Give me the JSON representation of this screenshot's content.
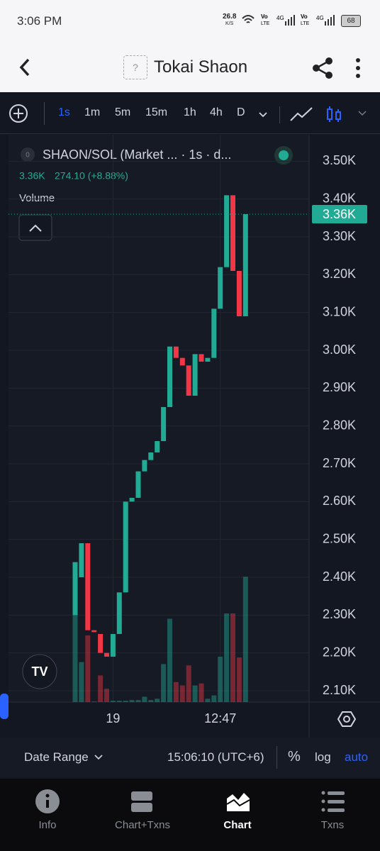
{
  "status_bar": {
    "time": "3:06 PM",
    "speed": "26.8",
    "speed_unit": "K/S",
    "battery": "68"
  },
  "header": {
    "title": "Tokai Shaon",
    "token_icon": "?"
  },
  "toolbar": {
    "intervals": [
      "1s",
      "1m",
      "5m",
      "15m",
      "1h",
      "4h",
      "D"
    ]
  },
  "chart_data": {
    "type": "candlestick",
    "legend_badge": "0",
    "title": "SHAON/SOL (Market ...  ·  1s  ·  d...",
    "ohlc_text": [
      "3.36K",
      "274.10 (+8.88%)"
    ],
    "volume_label": "Volume",
    "categories": [
      null,
      null,
      null,
      null,
      null,
      null,
      "19",
      null,
      null,
      null,
      null,
      null,
      null,
      null,
      null,
      null,
      null,
      null,
      null,
      null,
      null,
      null,
      null,
      "12:47",
      null,
      null,
      null,
      null
    ],
    "series": [
      {
        "name": "open",
        "values": [
          2300,
          2400,
          2490,
          2260,
          2250,
          2200,
          2190,
          2250,
          2360,
          2600,
          2610,
          2680,
          2710,
          2730,
          2760,
          2850,
          3010,
          2980,
          2960,
          2880,
          2990,
          2970,
          2980,
          3110,
          3220,
          3410,
          3210,
          3090
        ]
      },
      {
        "name": "close",
        "values": [
          2440,
          2490,
          2260,
          2255,
          2200,
          2190,
          2250,
          2360,
          2600,
          2610,
          2680,
          2710,
          2730,
          2760,
          2850,
          3010,
          2980,
          2960,
          2880,
          2990,
          2970,
          2980,
          3110,
          3220,
          3410,
          3210,
          3090,
          3360
        ]
      },
      {
        "name": "volume",
        "values": [
          200,
          60,
          100,
          1,
          40,
          20,
          2,
          2,
          2,
          3,
          3,
          8,
          3,
          5,
          57,
          125,
          30,
          25,
          55,
          25,
          28,
          5,
          10,
          68,
          133,
          133,
          67,
          188
        ]
      }
    ],
    "up_color": "#22ab94",
    "down_color": "#f23645",
    "ylim": [
      2070,
      3570
    ],
    "yticks": [
      {
        "value": 2100,
        "label": "2.10K"
      },
      {
        "value": 2200,
        "label": "2.20K"
      },
      {
        "value": 2300,
        "label": "2.30K"
      },
      {
        "value": 2400,
        "label": "2.40K"
      },
      {
        "value": 2500,
        "label": "2.50K"
      },
      {
        "value": 2600,
        "label": "2.60K"
      },
      {
        "value": 2700,
        "label": "2.70K"
      },
      {
        "value": 2800,
        "label": "2.80K"
      },
      {
        "value": 2900,
        "label": "2.90K"
      },
      {
        "value": 3000,
        "label": "3.00K"
      },
      {
        "value": 3100,
        "label": "3.10K"
      },
      {
        "value": 3200,
        "label": "3.20K"
      },
      {
        "value": 3300,
        "label": "3.30K"
      },
      {
        "value": 3400,
        "label": "3.40K"
      },
      {
        "value": 3500,
        "label": "3.50K"
      }
    ],
    "last_price": {
      "value": 3360,
      "label": "3.36K"
    },
    "grid": true
  },
  "bottom_bar": {
    "date_range": "Date Range",
    "time": "15:06:10 (UTC+6)",
    "percent": "%",
    "log": "log",
    "auto": "auto"
  },
  "nav": [
    "Info",
    "Chart+Txns",
    "Chart",
    "Txns"
  ]
}
